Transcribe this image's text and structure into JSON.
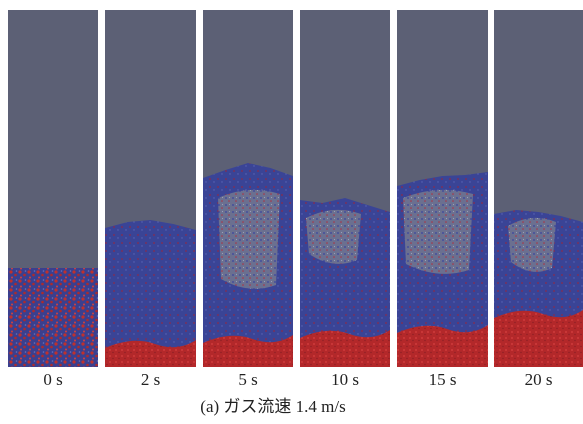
{
  "panels": [
    {
      "label": "0 s"
    },
    {
      "label": "2 s"
    },
    {
      "label": "5 s"
    },
    {
      "label": "10 s"
    },
    {
      "label": "15 s"
    },
    {
      "label": "20 s"
    }
  ],
  "caption": "(a) ガス流速 1.4 m/s"
}
